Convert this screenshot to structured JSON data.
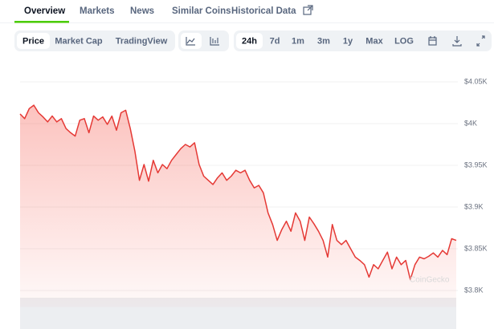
{
  "tabs": [
    "Overview",
    "Markets",
    "News",
    "Similar Coins",
    "Historical Data"
  ],
  "toolbar": {
    "views": [
      "Price",
      "Market Cap",
      "TradingView"
    ],
    "ranges": [
      "24h",
      "7d",
      "1m",
      "3m",
      "1y",
      "Max",
      "LOG"
    ]
  },
  "watermark": "CoinGecko",
  "chart_data": {
    "type": "line",
    "series": [
      {
        "color": "#e53935",
        "values": [
          4011.5,
          4006,
          4018,
          4022,
          4013,
          4008,
          4002,
          4009,
          4002,
          4006,
          3994,
          3989,
          3985,
          4004,
          4006,
          3989,
          4009,
          4004,
          4008,
          3999,
          4009,
          3992,
          4013,
          4016,
          3994,
          3967,
          3932,
          3951,
          3931,
          3956,
          3941,
          3951,
          3946,
          3956,
          3963,
          3970,
          3975,
          3972,
          3977,
          3951,
          3937,
          3932,
          3927,
          3935,
          3941,
          3932,
          3937,
          3944,
          3941,
          3944,
          3932,
          3923,
          3926,
          3917,
          3893,
          3879,
          3860,
          3873,
          3883,
          3871,
          3893,
          3883,
          3860,
          3888,
          3880,
          3871,
          3860,
          3840,
          3879,
          3860,
          3855,
          3860,
          3850,
          3840,
          3836,
          3831,
          3816,
          3831,
          3826,
          3836,
          3846,
          3826,
          3840,
          3831,
          3836,
          3813,
          3831,
          3840,
          3838,
          3841,
          3845,
          3840,
          3848,
          3843,
          3862,
          3860
        ]
      }
    ],
    "ylim": [
      3780,
      4070
    ],
    "yticks": [
      {
        "value": 4050,
        "label": "$4.05K"
      },
      {
        "value": 4000,
        "label": "$4K"
      },
      {
        "value": 3950,
        "label": "$3.95K"
      },
      {
        "value": 3900,
        "label": "$3.9K"
      },
      {
        "value": 3850,
        "label": "$3.85K"
      },
      {
        "value": 3800,
        "label": "$3.8K"
      }
    ],
    "grid": true
  }
}
